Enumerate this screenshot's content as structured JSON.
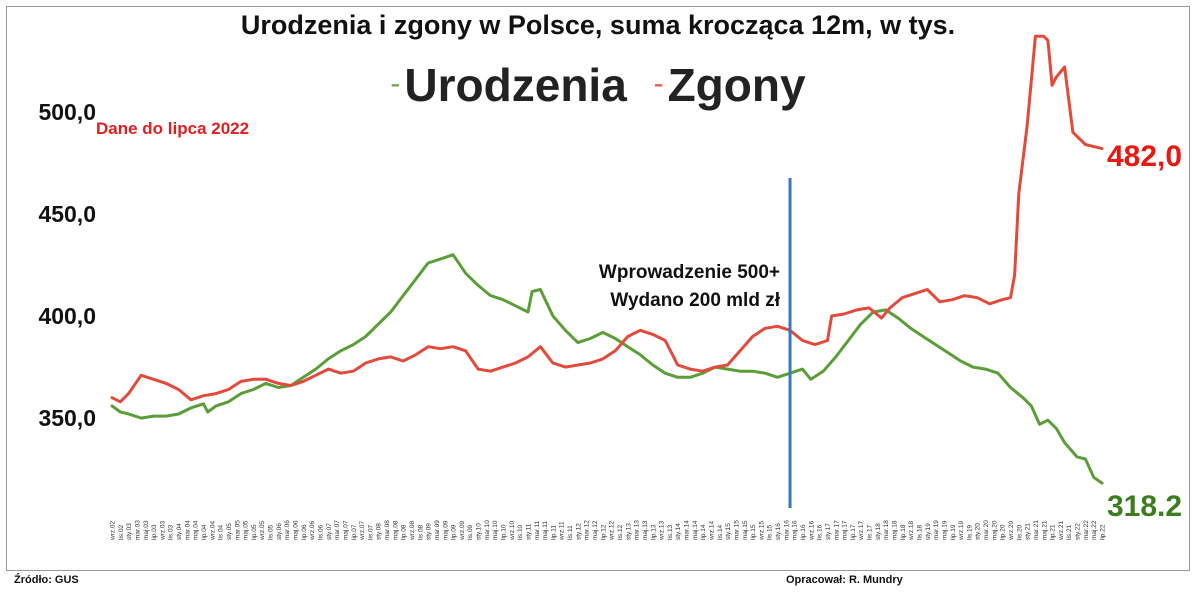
{
  "header": {
    "title": "Urodzenia i zgony w Polsce, suma krocząca 12m, w tys.",
    "legend_births": "Urodzenia",
    "legend_deaths": "Zgony",
    "legend_dash": "-"
  },
  "note": "Dane do lipca 2022",
  "annotation": {
    "line1": "Wprowadzenie 500+",
    "line2": "Wydano 200 mld zł"
  },
  "end_labels": {
    "deaths": "482,0",
    "births": "318.2"
  },
  "footer": {
    "source": "Źródło: GUS",
    "author": "Opracował: R. Mundry"
  },
  "colors": {
    "births": "#5b9e38",
    "deaths": "#e24b3b",
    "marker": "#3d78bd",
    "endDeaths": "#e8170f",
    "endBirths": "#3b7d1f"
  },
  "chart_data": {
    "type": "line",
    "ylim": [
      305,
      545
    ],
    "y_ticks": [
      {
        "value": 350,
        "label": "350,0"
      },
      {
        "value": 400,
        "label": "400,0"
      },
      {
        "value": 450,
        "label": "450,0"
      },
      {
        "value": 500,
        "label": "500,0"
      }
    ],
    "x_start": "2002-09",
    "x_end": "2022-07",
    "x_ticks": [
      "wrz.02",
      "lis.02",
      "sty.03",
      "mar.03",
      "maj.03",
      "lip.03",
      "wrz.03",
      "lis.03",
      "sty.04",
      "mar.04",
      "maj.04",
      "lip.04",
      "wrz.04",
      "lis.04",
      "sty.05",
      "mar.05",
      "maj.05",
      "lip.05",
      "wrz.05",
      "lis.05",
      "sty.06",
      "mar.06",
      "maj.06",
      "lip.06",
      "wrz.06",
      "lis.06",
      "sty.07",
      "mar.07",
      "maj.07",
      "lip.07",
      "wrz.07",
      "lis.07",
      "sty.08",
      "mar.08",
      "maj.08",
      "lip.08",
      "wrz.08",
      "lis.08",
      "sty.09",
      "mar.09",
      "maj.09",
      "lip.09",
      "wrz.09",
      "lis.09",
      "sty.10",
      "mar.10",
      "maj.10",
      "lip.10",
      "wrz.10",
      "lis.10",
      "sty.11",
      "mar.11",
      "maj.11",
      "lip.11",
      "wrz.11",
      "lis.11",
      "sty.12",
      "mar.12",
      "maj.12",
      "lip.12",
      "wrz.12",
      "lis.12",
      "sty.13",
      "mar.13",
      "maj.13",
      "lip.13",
      "wrz.13",
      "lis.13",
      "sty.14",
      "mar.14",
      "maj.14",
      "lip.14",
      "wrz.14",
      "lis.14",
      "sty.15",
      "mar.15",
      "maj.15",
      "lip.15",
      "wrz.15",
      "lis.15",
      "sty.16",
      "mar.16",
      "maj.16",
      "lip.16",
      "wrz.16",
      "lis.16",
      "sty.17",
      "mar.17",
      "maj.17",
      "lip.17",
      "wrz.17",
      "lis.17",
      "sty.18",
      "mar.18",
      "maj.18",
      "lip.18",
      "wrz.18",
      "lis.18",
      "sty.19",
      "mar.19",
      "maj.19",
      "lip.19",
      "wrz.19",
      "lis.19",
      "sty.20",
      "mar.20",
      "maj.20",
      "lip.20",
      "wrz.20",
      "lis.20",
      "sty.21",
      "mar.21",
      "maj.21",
      "lip.21",
      "wrz.21",
      "lis.21",
      "sty.22",
      "mar.22",
      "maj.22",
      "lip.22"
    ],
    "marker_x": "2016-04",
    "series": [
      {
        "name": "Urodzenia",
        "key": "births",
        "points": [
          [
            "2002-09",
            356
          ],
          [
            "2002-11",
            353
          ],
          [
            "2003-01",
            352
          ],
          [
            "2003-04",
            350
          ],
          [
            "2003-07",
            351
          ],
          [
            "2003-10",
            351
          ],
          [
            "2004-01",
            352
          ],
          [
            "2004-04",
            355
          ],
          [
            "2004-07",
            357
          ],
          [
            "2004-08",
            353
          ],
          [
            "2004-10",
            356
          ],
          [
            "2005-01",
            358
          ],
          [
            "2005-04",
            362
          ],
          [
            "2005-07",
            364
          ],
          [
            "2005-10",
            367
          ],
          [
            "2006-01",
            365
          ],
          [
            "2006-04",
            366
          ],
          [
            "2006-07",
            370
          ],
          [
            "2006-10",
            374
          ],
          [
            "2007-01",
            379
          ],
          [
            "2007-04",
            383
          ],
          [
            "2007-07",
            386
          ],
          [
            "2007-10",
            390
          ],
          [
            "2008-01",
            396
          ],
          [
            "2008-04",
            402
          ],
          [
            "2008-07",
            410
          ],
          [
            "2008-10",
            418
          ],
          [
            "2009-01",
            426
          ],
          [
            "2009-04",
            428
          ],
          [
            "2009-07",
            430
          ],
          [
            "2009-10",
            421
          ],
          [
            "2010-01",
            415
          ],
          [
            "2010-04",
            410
          ],
          [
            "2010-07",
            408
          ],
          [
            "2010-10",
            405
          ],
          [
            "2011-01",
            402
          ],
          [
            "2011-02",
            412
          ],
          [
            "2011-04",
            413
          ],
          [
            "2011-07",
            400
          ],
          [
            "2011-10",
            393
          ],
          [
            "2012-01",
            387
          ],
          [
            "2012-04",
            389
          ],
          [
            "2012-07",
            392
          ],
          [
            "2012-10",
            389
          ],
          [
            "2013-01",
            385
          ],
          [
            "2013-04",
            381
          ],
          [
            "2013-07",
            376
          ],
          [
            "2013-10",
            372
          ],
          [
            "2014-01",
            370
          ],
          [
            "2014-04",
            370
          ],
          [
            "2014-07",
            372
          ],
          [
            "2014-10",
            375
          ],
          [
            "2015-01",
            374
          ],
          [
            "2015-04",
            373
          ],
          [
            "2015-07",
            373
          ],
          [
            "2015-10",
            372
          ],
          [
            "2016-01",
            370
          ],
          [
            "2016-04",
            372
          ],
          [
            "2016-07",
            374
          ],
          [
            "2016-09",
            369
          ],
          [
            "2016-12",
            373
          ],
          [
            "2017-03",
            380
          ],
          [
            "2017-06",
            388
          ],
          [
            "2017-09",
            396
          ],
          [
            "2017-12",
            402
          ],
          [
            "2018-03",
            403
          ],
          [
            "2018-06",
            399
          ],
          [
            "2018-09",
            394
          ],
          [
            "2018-12",
            390
          ],
          [
            "2019-03",
            386
          ],
          [
            "2019-06",
            382
          ],
          [
            "2019-09",
            378
          ],
          [
            "2019-12",
            375
          ],
          [
            "2020-03",
            374
          ],
          [
            "2020-06",
            372
          ],
          [
            "2020-09",
            365
          ],
          [
            "2020-12",
            360
          ],
          [
            "2021-02",
            356
          ],
          [
            "2021-04",
            347
          ],
          [
            "2021-06",
            349
          ],
          [
            "2021-08",
            345
          ],
          [
            "2021-10",
            338
          ],
          [
            "2022-01",
            331
          ],
          [
            "2022-03",
            330
          ],
          [
            "2022-05",
            321
          ],
          [
            "2022-07",
            318.2
          ]
        ]
      },
      {
        "name": "Zgony",
        "key": "deaths",
        "points": [
          [
            "2002-09",
            360
          ],
          [
            "2002-11",
            358
          ],
          [
            "2003-01",
            362
          ],
          [
            "2003-04",
            371
          ],
          [
            "2003-07",
            369
          ],
          [
            "2003-10",
            367
          ],
          [
            "2004-01",
            364
          ],
          [
            "2004-04",
            359
          ],
          [
            "2004-07",
            361
          ],
          [
            "2004-10",
            362
          ],
          [
            "2005-01",
            364
          ],
          [
            "2005-04",
            368
          ],
          [
            "2005-07",
            369
          ],
          [
            "2005-10",
            369
          ],
          [
            "2006-01",
            367
          ],
          [
            "2006-04",
            366
          ],
          [
            "2006-07",
            368
          ],
          [
            "2006-10",
            371
          ],
          [
            "2007-01",
            374
          ],
          [
            "2007-04",
            372
          ],
          [
            "2007-07",
            373
          ],
          [
            "2007-10",
            377
          ],
          [
            "2008-01",
            379
          ],
          [
            "2008-04",
            380
          ],
          [
            "2008-07",
            378
          ],
          [
            "2008-10",
            381
          ],
          [
            "2009-01",
            385
          ],
          [
            "2009-04",
            384
          ],
          [
            "2009-07",
            385
          ],
          [
            "2009-10",
            383
          ],
          [
            "2010-01",
            374
          ],
          [
            "2010-04",
            373
          ],
          [
            "2010-07",
            375
          ],
          [
            "2010-10",
            377
          ],
          [
            "2011-01",
            380
          ],
          [
            "2011-04",
            385
          ],
          [
            "2011-07",
            377
          ],
          [
            "2011-10",
            375
          ],
          [
            "2012-01",
            376
          ],
          [
            "2012-04",
            377
          ],
          [
            "2012-07",
            379
          ],
          [
            "2012-10",
            383
          ],
          [
            "2013-01",
            390
          ],
          [
            "2013-04",
            393
          ],
          [
            "2013-07",
            391
          ],
          [
            "2013-10",
            388
          ],
          [
            "2014-01",
            376
          ],
          [
            "2014-04",
            374
          ],
          [
            "2014-07",
            373
          ],
          [
            "2014-10",
            375
          ],
          [
            "2015-01",
            376
          ],
          [
            "2015-04",
            383
          ],
          [
            "2015-07",
            390
          ],
          [
            "2015-10",
            394
          ],
          [
            "2016-01",
            395
          ],
          [
            "2016-04",
            393
          ],
          [
            "2016-07",
            388
          ],
          [
            "2016-10",
            386
          ],
          [
            "2017-01",
            388
          ],
          [
            "2017-02",
            400
          ],
          [
            "2017-05",
            401
          ],
          [
            "2017-08",
            403
          ],
          [
            "2017-11",
            404
          ],
          [
            "2018-02",
            399
          ],
          [
            "2018-04",
            404
          ],
          [
            "2018-07",
            409
          ],
          [
            "2018-10",
            411
          ],
          [
            "2019-01",
            413
          ],
          [
            "2019-04",
            407
          ],
          [
            "2019-07",
            408
          ],
          [
            "2019-10",
            410
          ],
          [
            "2020-01",
            409
          ],
          [
            "2020-04",
            406
          ],
          [
            "2020-07",
            408
          ],
          [
            "2020-09",
            409
          ],
          [
            "2020-10",
            420
          ],
          [
            "2020-11",
            460
          ],
          [
            "2021-01",
            493
          ],
          [
            "2021-03",
            537
          ],
          [
            "2021-05",
            537
          ],
          [
            "2021-06",
            535
          ],
          [
            "2021-07",
            513
          ],
          [
            "2021-08",
            517
          ],
          [
            "2021-10",
            522
          ],
          [
            "2021-12",
            490
          ],
          [
            "2022-03",
            484
          ],
          [
            "2022-07",
            482
          ]
        ]
      }
    ]
  }
}
